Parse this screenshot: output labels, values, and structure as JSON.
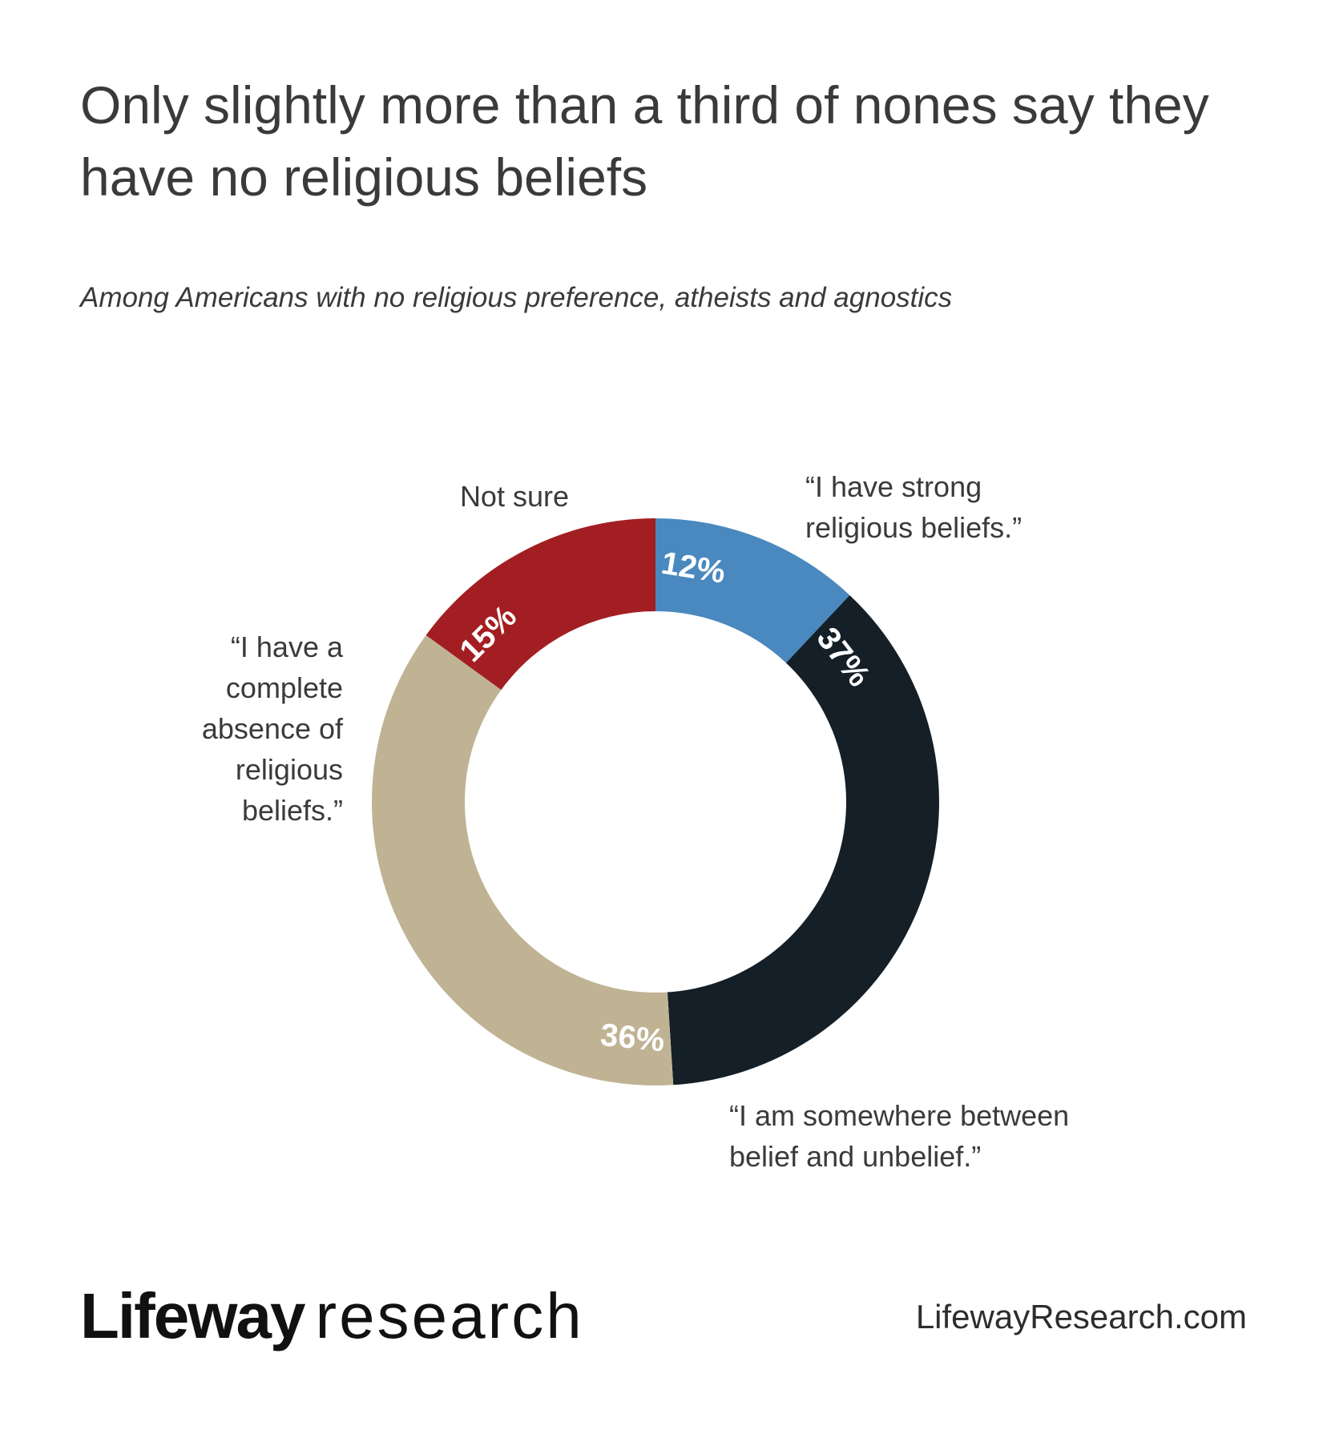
{
  "header": {
    "title": "Only slightly more than a third of nones say they have no religious beliefs",
    "subtitle": "Among Americans with no religious preference, atheists and agnostics"
  },
  "chart_data": {
    "type": "pie",
    "donut": true,
    "start": "top",
    "direction": "clockwise",
    "slices": [
      {
        "label": [
          "“I have strong",
          "religious beliefs.”"
        ],
        "value": 12,
        "value_label": "12%",
        "color": "#4a89bf"
      },
      {
        "label": [
          "“I am somewhere between",
          "belief and unbelief.”"
        ],
        "value": 37,
        "value_label": "37%",
        "color": "#141f28"
      },
      {
        "label": [
          "“I have a",
          "complete",
          "absence of",
          "religious",
          "beliefs.”"
        ],
        "value": 36,
        "value_label": "36%",
        "color": "#bfb394"
      },
      {
        "label": [
          "Not sure"
        ],
        "value": 15,
        "value_label": "15%",
        "color": "#a31e22"
      }
    ]
  },
  "footer": {
    "brand": "Lifeway",
    "brand_sub": "research",
    "url": "LifewayResearch.com"
  }
}
